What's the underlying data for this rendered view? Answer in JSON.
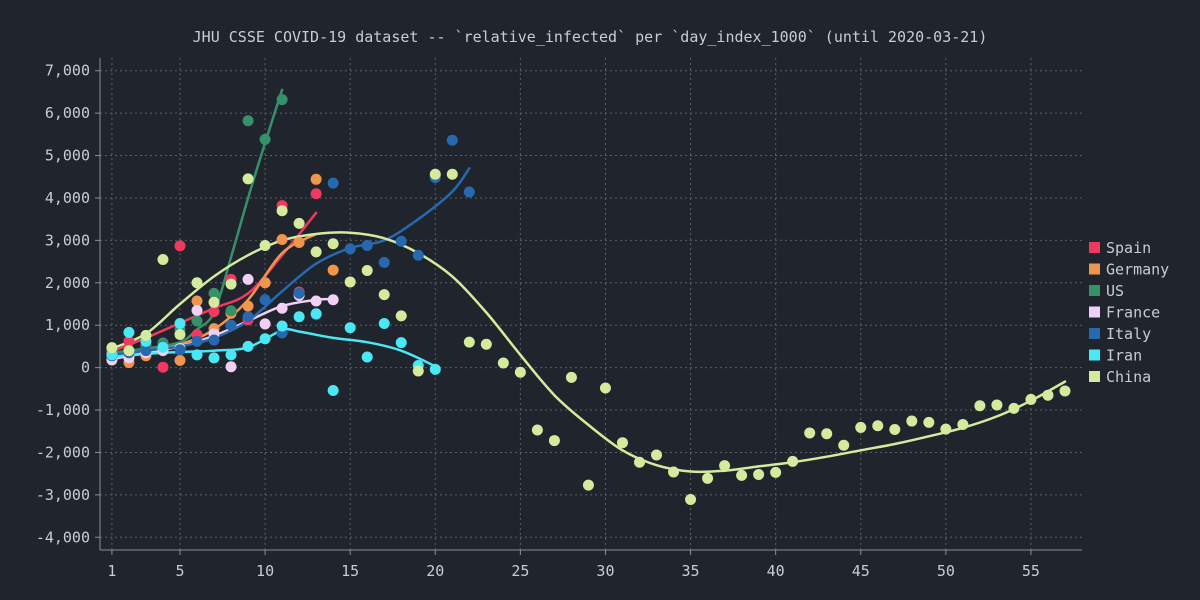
{
  "chart_data": {
    "type": "scatter",
    "title": "JHU CSSE COVID-19 dataset -- `relative_infected` per `day_index_1000` (until 2020-03-21)",
    "xlabel": "",
    "ylabel": "",
    "xlim": [
      0.3,
      58
    ],
    "ylim": [
      -4300,
      7300
    ],
    "x_ticks": [
      1,
      5,
      10,
      15,
      20,
      25,
      30,
      35,
      40,
      45,
      50,
      55
    ],
    "y_ticks": [
      -4000,
      -3000,
      -2000,
      -1000,
      0,
      1000,
      2000,
      3000,
      4000,
      5000,
      6000,
      7000
    ],
    "y_tick_labels": [
      "-4,000",
      "-3,000",
      "-2,000",
      "-1,000",
      "0",
      "1,000",
      "2,000",
      "3,000",
      "4,000",
      "5,000",
      "6,000",
      "7,000"
    ],
    "grid": true,
    "legend_position": "right",
    "series": [
      {
        "name": "Spain",
        "color": "#f0395e",
        "points": [
          [
            1,
            380
          ],
          [
            2,
            620
          ],
          [
            3,
            520
          ],
          [
            4,
            10
          ],
          [
            5,
            2870
          ],
          [
            6,
            780
          ],
          [
            7,
            1320
          ],
          [
            8,
            2080
          ],
          [
            9,
            1130
          ],
          [
            10,
            2000
          ],
          [
            11,
            3820
          ],
          [
            12,
            1780
          ],
          [
            13,
            4100
          ]
        ],
        "trend": [
          [
            1,
            380
          ],
          [
            3,
            700
          ],
          [
            5,
            1050
          ],
          [
            7,
            1400
          ],
          [
            9,
            1750
          ],
          [
            11,
            2650
          ],
          [
            13,
            3650
          ]
        ]
      },
      {
        "name": "Germany",
        "color": "#f0954e",
        "points": [
          [
            1,
            320
          ],
          [
            2,
            120
          ],
          [
            3,
            280
          ],
          [
            4,
            420
          ],
          [
            5,
            170
          ],
          [
            6,
            1570
          ],
          [
            7,
            920
          ],
          [
            8,
            1280
          ],
          [
            9,
            1450
          ],
          [
            10,
            2000
          ],
          [
            11,
            3020
          ],
          [
            12,
            2950
          ],
          [
            13,
            4440
          ],
          [
            14,
            2300
          ]
        ],
        "trend": [
          [
            1,
            250
          ],
          [
            3,
            400
          ],
          [
            5,
            550
          ],
          [
            7,
            900
          ],
          [
            9,
            1600
          ],
          [
            11,
            2700
          ],
          [
            13,
            3150
          ]
        ]
      },
      {
        "name": "US",
        "color": "#36906a",
        "points": [
          [
            1,
            420
          ],
          [
            2,
            380
          ],
          [
            3,
            460
          ],
          [
            4,
            580
          ],
          [
            5,
            900
          ],
          [
            6,
            1100
          ],
          [
            7,
            1750
          ],
          [
            8,
            1340
          ],
          [
            9,
            5820
          ],
          [
            10,
            5380
          ],
          [
            11,
            6320
          ]
        ],
        "trend": [
          [
            1,
            350
          ],
          [
            3,
            450
          ],
          [
            5,
            600
          ],
          [
            6,
            900
          ],
          [
            7,
            1300
          ],
          [
            8,
            2600
          ],
          [
            9,
            4000
          ],
          [
            10,
            5300
          ],
          [
            11,
            6550
          ]
        ]
      },
      {
        "name": "France",
        "color": "#f1d0f5",
        "points": [
          [
            1,
            180
          ],
          [
            2,
            230
          ],
          [
            3,
            350
          ],
          [
            4,
            400
          ],
          [
            5,
            450
          ],
          [
            6,
            1350
          ],
          [
            7,
            800
          ],
          [
            8,
            20
          ],
          [
            9,
            2080
          ],
          [
            10,
            1030
          ],
          [
            11,
            1400
          ],
          [
            12,
            1700
          ],
          [
            13,
            1570
          ],
          [
            14,
            1600
          ]
        ],
        "trend": [
          [
            1,
            200
          ],
          [
            3,
            350
          ],
          [
            5,
            500
          ],
          [
            7,
            750
          ],
          [
            9,
            1100
          ],
          [
            11,
            1450
          ],
          [
            13,
            1600
          ],
          [
            14,
            1610
          ]
        ]
      },
      {
        "name": "Italy",
        "color": "#2669b0",
        "points": [
          [
            1,
            280
          ],
          [
            2,
            350
          ],
          [
            3,
            400
          ],
          [
            4,
            500
          ],
          [
            5,
            420
          ],
          [
            6,
            620
          ],
          [
            7,
            650
          ],
          [
            8,
            1000
          ],
          [
            9,
            1200
          ],
          [
            10,
            1600
          ],
          [
            11,
            820
          ],
          [
            12,
            1750
          ],
          [
            13,
            1250
          ],
          [
            14,
            4350
          ],
          [
            15,
            2800
          ],
          [
            16,
            2880
          ],
          [
            17,
            2480
          ],
          [
            18,
            2980
          ],
          [
            19,
            2650
          ],
          [
            20,
            4480
          ],
          [
            21,
            5360
          ],
          [
            22,
            4140
          ]
        ],
        "trend": [
          [
            1,
            300
          ],
          [
            3,
            400
          ],
          [
            5,
            500
          ],
          [
            7,
            700
          ],
          [
            9,
            1100
          ],
          [
            11,
            1800
          ],
          [
            13,
            2450
          ],
          [
            15,
            2820
          ],
          [
            17,
            3000
          ],
          [
            19,
            3500
          ],
          [
            21,
            4150
          ],
          [
            22,
            4700
          ]
        ]
      },
      {
        "name": "Iran",
        "color": "#4ae8f4",
        "points": [
          [
            1,
            300
          ],
          [
            2,
            830
          ],
          [
            3,
            620
          ],
          [
            4,
            480
          ],
          [
            5,
            1040
          ],
          [
            6,
            300
          ],
          [
            7,
            230
          ],
          [
            8,
            300
          ],
          [
            9,
            500
          ],
          [
            10,
            680
          ],
          [
            11,
            980
          ],
          [
            12,
            1200
          ],
          [
            13,
            1270
          ],
          [
            14,
            -540
          ],
          [
            15,
            940
          ],
          [
            16,
            250
          ],
          [
            17,
            1040
          ],
          [
            18,
            590
          ],
          [
            19,
            50
          ],
          [
            20,
            -40
          ]
        ],
        "trend": [
          [
            1,
            250
          ],
          [
            4,
            350
          ],
          [
            7,
            400
          ],
          [
            9,
            480
          ],
          [
            11,
            880
          ],
          [
            12,
            850
          ],
          [
            14,
            700
          ],
          [
            16,
            600
          ],
          [
            18,
            400
          ],
          [
            20,
            30
          ]
        ]
      },
      {
        "name": "China",
        "color": "#d4eb9e",
        "points": [
          [
            1,
            470
          ],
          [
            2,
            400
          ],
          [
            3,
            760
          ],
          [
            4,
            2550
          ],
          [
            5,
            780
          ],
          [
            6,
            2000
          ],
          [
            7,
            1540
          ],
          [
            8,
            1970
          ],
          [
            9,
            4450
          ],
          [
            10,
            2880
          ],
          [
            11,
            3700
          ],
          [
            12,
            3400
          ],
          [
            13,
            2730
          ],
          [
            14,
            2920
          ],
          [
            15,
            2020
          ],
          [
            16,
            2290
          ],
          [
            17,
            1720
          ],
          [
            18,
            1220
          ],
          [
            19,
            -80
          ],
          [
            20,
            4560
          ],
          [
            21,
            4560
          ],
          [
            22,
            600
          ],
          [
            23,
            550
          ],
          [
            24,
            110
          ],
          [
            25,
            -110
          ],
          [
            26,
            -1470
          ],
          [
            27,
            -1720
          ],
          [
            28,
            -230
          ],
          [
            29,
            -2770
          ],
          [
            30,
            -480
          ],
          [
            31,
            -1770
          ],
          [
            32,
            -2230
          ],
          [
            33,
            -2060
          ],
          [
            34,
            -2460
          ],
          [
            35,
            -3110
          ],
          [
            36,
            -2610
          ],
          [
            37,
            -2310
          ],
          [
            38,
            -2540
          ],
          [
            39,
            -2520
          ],
          [
            40,
            -2470
          ],
          [
            41,
            -2210
          ],
          [
            42,
            -1540
          ],
          [
            43,
            -1560
          ],
          [
            44,
            -1830
          ],
          [
            45,
            -1410
          ],
          [
            46,
            -1370
          ],
          [
            47,
            -1460
          ],
          [
            48,
            -1260
          ],
          [
            49,
            -1290
          ],
          [
            50,
            -1450
          ],
          [
            51,
            -1340
          ],
          [
            52,
            -900
          ],
          [
            53,
            -880
          ],
          [
            54,
            -960
          ],
          [
            55,
            -750
          ],
          [
            56,
            -650
          ],
          [
            57,
            -550
          ]
        ],
        "trend": [
          [
            1,
            450
          ],
          [
            3,
            800
          ],
          [
            5,
            1500
          ],
          [
            7,
            2150
          ],
          [
            9,
            2650
          ],
          [
            11,
            3000
          ],
          [
            13,
            3150
          ],
          [
            15,
            3180
          ],
          [
            17,
            3050
          ],
          [
            19,
            2700
          ],
          [
            21,
            2150
          ],
          [
            23,
            1300
          ],
          [
            25,
            300
          ],
          [
            27,
            -650
          ],
          [
            29,
            -1350
          ],
          [
            31,
            -1950
          ],
          [
            33,
            -2300
          ],
          [
            35,
            -2450
          ],
          [
            37,
            -2430
          ],
          [
            39,
            -2330
          ],
          [
            41,
            -2230
          ],
          [
            43,
            -2100
          ],
          [
            45,
            -1950
          ],
          [
            47,
            -1800
          ],
          [
            49,
            -1620
          ],
          [
            51,
            -1420
          ],
          [
            53,
            -1150
          ],
          [
            55,
            -780
          ],
          [
            57,
            -330
          ]
        ]
      }
    ]
  }
}
